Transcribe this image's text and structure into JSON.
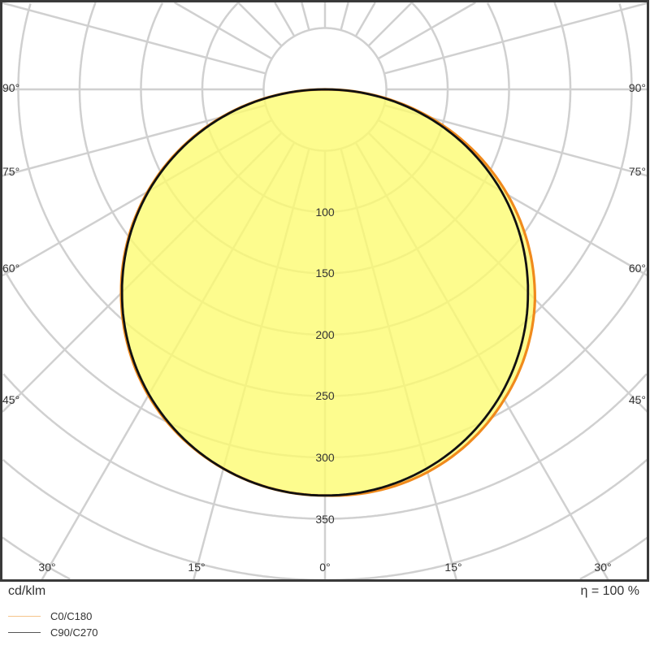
{
  "chart_data": {
    "type": "polar",
    "unit_label": "cd/klm",
    "efficiency_label": "η = 100 %",
    "radial_ticks": [
      100,
      150,
      200,
      250,
      300,
      350
    ],
    "radial_ticks_text": [
      "100",
      "150",
      "200",
      "250",
      "300",
      "350"
    ],
    "angle_labels": {
      "left": [
        "90°",
        "75°",
        "60°",
        "45°"
      ],
      "right": [
        "90°",
        "75°",
        "60°",
        "45°"
      ],
      "bottom": [
        "30°",
        "15°",
        "0°",
        "15°",
        "30°"
      ]
    },
    "angles_deg": [
      0,
      15,
      30,
      45,
      60,
      75,
      90
    ],
    "series": [
      {
        "name": "C0/C180",
        "color": "#f08a1c",
        "values_side_a": [
          331,
          323,
          292,
          242,
          172,
          89,
          0
        ],
        "values_side_b": [
          331,
          320,
          288,
          235,
          167,
          87,
          0
        ]
      },
      {
        "name": "C90/C270",
        "color": "#111111",
        "values_side_a": [
          331,
          320,
          287,
          234,
          166,
          86,
          0
        ],
        "values_side_b": [
          331,
          320,
          287,
          234,
          166,
          86,
          0
        ]
      }
    ],
    "fill_color": "#fdfb6e",
    "grid": true,
    "grid_color": "#d0d0d0"
  },
  "legend": {
    "items": [
      {
        "label": "C0/C180",
        "color": "#f5c48a"
      },
      {
        "label": "C90/C270",
        "color": "#555555"
      }
    ]
  }
}
